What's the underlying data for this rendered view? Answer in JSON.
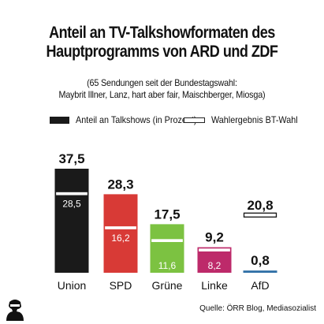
{
  "title_line1": "Anteil an TV-Talkshowformaten des",
  "title_line2": "Hauptprogramms von ARD und ZDF",
  "subtitle_line1": "(65 Sendungen seit der Bundestagswahl:",
  "subtitle_line2": "Maybrit Illner, Lanz, hart aber fair, Maischberger, Miosga)",
  "legend": {
    "talkshow_label": "Anteil an Talkshows (in Prozent)",
    "election_label": "Wahlergebnis BT-Wahl"
  },
  "source": "Quelle: ÖRR Blog, Mediasozialist",
  "logo_icon": "silhouette-portrait-icon",
  "chart_data": {
    "type": "bar",
    "categories": [
      "Union",
      "SPD",
      "Grüne",
      "Linke",
      "AfD"
    ],
    "series": [
      {
        "name": "Anteil an Talkshows (in Prozent)",
        "values": [
          37.5,
          28.3,
          17.5,
          9.2,
          0.8
        ],
        "labels": [
          "37,5",
          "28,3",
          "17,5",
          "9,2",
          "0,8"
        ],
        "colors": [
          "#1a1a1a",
          "#d83a36",
          "#7cc241",
          "#bd2a6a",
          "#2f6fa6"
        ]
      },
      {
        "name": "Wahlergebnis BT-Wahl",
        "values": [
          28.5,
          16.2,
          11.6,
          8.2,
          20.8
        ],
        "labels": [
          "28,5",
          "16,2",
          "11,6",
          "8,2",
          "20,8"
        ]
      }
    ],
    "ylim": [
      0,
      37.5
    ],
    "legend_position": "top"
  }
}
